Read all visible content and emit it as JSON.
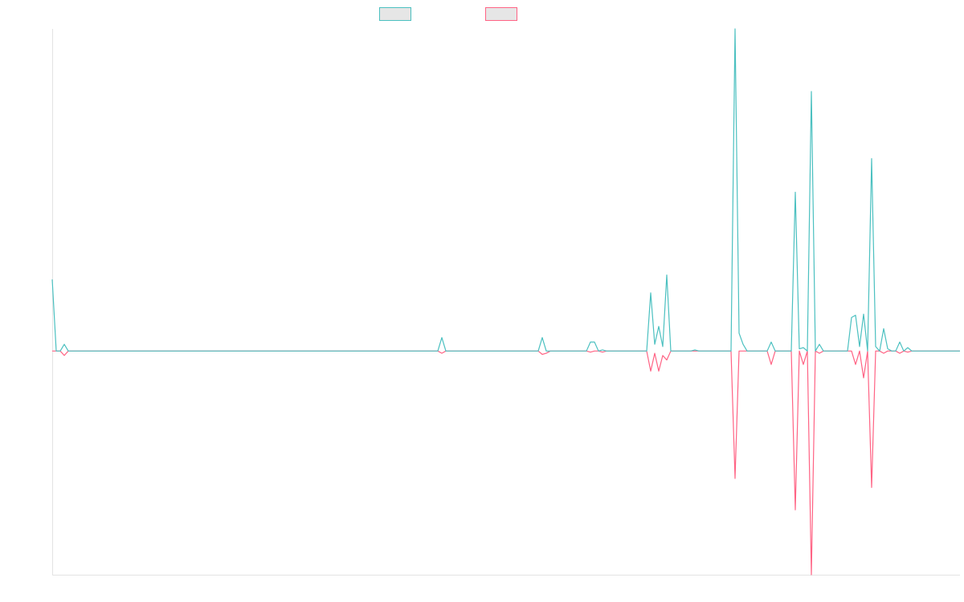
{
  "chart_data": {
    "type": "line",
    "categories": [
      null,
      null,
      null,
      null,
      null,
      null,
      null,
      null,
      null,
      null,
      null,
      null,
      null,
      null,
      null,
      null,
      null,
      null,
      null,
      null,
      null,
      null,
      null,
      null,
      null,
      null,
      null,
      null,
      null,
      null,
      null,
      null,
      null,
      null,
      null,
      null,
      null,
      null,
      null,
      null,
      null,
      null,
      null,
      null,
      null,
      null,
      null,
      null,
      null,
      null,
      null,
      null,
      null,
      null,
      null,
      null,
      null,
      null,
      null,
      null,
      null,
      null,
      null,
      null,
      null,
      null,
      null,
      null,
      null,
      null,
      null,
      null,
      null,
      null,
      null,
      null,
      null,
      null,
      null,
      null,
      null,
      null,
      null,
      null,
      null,
      null,
      null,
      null,
      null,
      null,
      null,
      null,
      null,
      null,
      null,
      null,
      null,
      null,
      null,
      null,
      null,
      null,
      null,
      null,
      null,
      null,
      null,
      null,
      null,
      null,
      null,
      null,
      null,
      null,
      null,
      null,
      null,
      null,
      null,
      null,
      null,
      null,
      null,
      null,
      null,
      null,
      null,
      null,
      null,
      null,
      null,
      null,
      null,
      null,
      null,
      null,
      null,
      null,
      null,
      null,
      null,
      null,
      null,
      null,
      null,
      null,
      null,
      null,
      null,
      null,
      null,
      null,
      null,
      null,
      null,
      null,
      null,
      null,
      null,
      null,
      null,
      null,
      null,
      null,
      null,
      null,
      null,
      null,
      null,
      null,
      null,
      null,
      null,
      null,
      null,
      null,
      null,
      null,
      null,
      null,
      null,
      null,
      null,
      null,
      null,
      null,
      null,
      null,
      null,
      null,
      null,
      null,
      null,
      null,
      null,
      null,
      null,
      null,
      null,
      null,
      null,
      null,
      null,
      null,
      null,
      null,
      null,
      null,
      null,
      null,
      null,
      null,
      null,
      null,
      null,
      null,
      null,
      null,
      null,
      null,
      null,
      null,
      null,
      null,
      null,
      null,
      null
    ],
    "series": [
      {
        "color": "#4bc0c0",
        "values": [
          32,
          0,
          0,
          3,
          0,
          0,
          0,
          0,
          0,
          0,
          0,
          0,
          0,
          0,
          0,
          0,
          0,
          0,
          0,
          0,
          0,
          0,
          0,
          0,
          0,
          0,
          0,
          0,
          0,
          0,
          0,
          0,
          0,
          0,
          0,
          0,
          0,
          0,
          0,
          0,
          0,
          0,
          0,
          0,
          0,
          0,
          0,
          0,
          0,
          0,
          0,
          0,
          0,
          0,
          0,
          0,
          0,
          0,
          0,
          0,
          0,
          0,
          0,
          0,
          0,
          0,
          0,
          0,
          0,
          0,
          0,
          0,
          0,
          0,
          0,
          0,
          0,
          0,
          0,
          0,
          0,
          0,
          0,
          0,
          0,
          0,
          0,
          0,
          0,
          0,
          0,
          0,
          0,
          0,
          0,
          0,
          0,
          6,
          0,
          0,
          0,
          0,
          0,
          0,
          0,
          0,
          0,
          0,
          0,
          0,
          0,
          0,
          0,
          0,
          0,
          0,
          0,
          0,
          0,
          0,
          0,
          0,
          6,
          0,
          0,
          0,
          0,
          0,
          0,
          0,
          0,
          0,
          0,
          0,
          4,
          4,
          0,
          0.5,
          0,
          0,
          0,
          0,
          0,
          0,
          0,
          0,
          0,
          0,
          0,
          26,
          3,
          11,
          2,
          34,
          0,
          0,
          0,
          0,
          0,
          0,
          0.5,
          0,
          0,
          0,
          0,
          0,
          0,
          0,
          0,
          0,
          144,
          8,
          3,
          0,
          0,
          0,
          0,
          0,
          0,
          4,
          0,
          0,
          0,
          0,
          0,
          71,
          1,
          1.5,
          0,
          116,
          0,
          3,
          0,
          0,
          0,
          0,
          0,
          0,
          0,
          15,
          16,
          2,
          16.5,
          0,
          86,
          2,
          0,
          10,
          1,
          0,
          0,
          4,
          0,
          1.5,
          0,
          0,
          0,
          0,
          0,
          0,
          0,
          0,
          0,
          0,
          0,
          0,
          0
        ]
      },
      {
        "color": "#ff6384",
        "values": [
          0,
          0,
          0,
          -2,
          0,
          0,
          0,
          0,
          0,
          0,
          0,
          0,
          0,
          0,
          0,
          0,
          0,
          0,
          0,
          0,
          0,
          0,
          0,
          0,
          0,
          0,
          0,
          0,
          0,
          0,
          0,
          0,
          0,
          0,
          0,
          0,
          0,
          0,
          0,
          0,
          0,
          0,
          0,
          0,
          0,
          0,
          0,
          0,
          0,
          0,
          0,
          0,
          0,
          0,
          0,
          0,
          0,
          0,
          0,
          0,
          0,
          0,
          0,
          0,
          0,
          0,
          0,
          0,
          0,
          0,
          0,
          0,
          0,
          0,
          0,
          0,
          0,
          0,
          0,
          0,
          0,
          0,
          0,
          0,
          0,
          0,
          0,
          0,
          0,
          0,
          0,
          0,
          0,
          0,
          0,
          0,
          0,
          -1,
          0,
          0,
          0,
          0,
          0,
          0,
          0,
          0,
          0,
          0,
          0,
          0,
          0,
          0,
          0,
          0,
          0,
          0,
          0,
          0,
          0,
          0,
          0,
          0,
          -1.5,
          -1,
          0,
          0,
          0,
          0,
          0,
          0,
          0,
          0,
          0,
          0,
          -0.5,
          0,
          0,
          -0.5,
          0,
          0,
          0,
          0,
          0,
          0,
          0,
          0,
          0,
          0,
          0,
          -9,
          -1,
          -9,
          -2,
          -4,
          0,
          0,
          0,
          0,
          0,
          0,
          0,
          0,
          0,
          0,
          0,
          0,
          0,
          0,
          0,
          0,
          -57,
          0,
          0,
          0,
          0,
          0,
          0,
          0,
          0,
          -6,
          0,
          0,
          0,
          0,
          0,
          -71,
          0,
          -6,
          0,
          -100,
          0,
          -1,
          0,
          0,
          0,
          0,
          0,
          0,
          0,
          0,
          -6,
          0,
          -12,
          0,
          -61,
          0,
          0,
          -1,
          0,
          0,
          0,
          -1,
          0,
          -0.5,
          0,
          0,
          0,
          0,
          0,
          0,
          0,
          0,
          0,
          0,
          0,
          0,
          0
        ]
      }
    ],
    "ylim": [
      -100,
      144
    ]
  }
}
